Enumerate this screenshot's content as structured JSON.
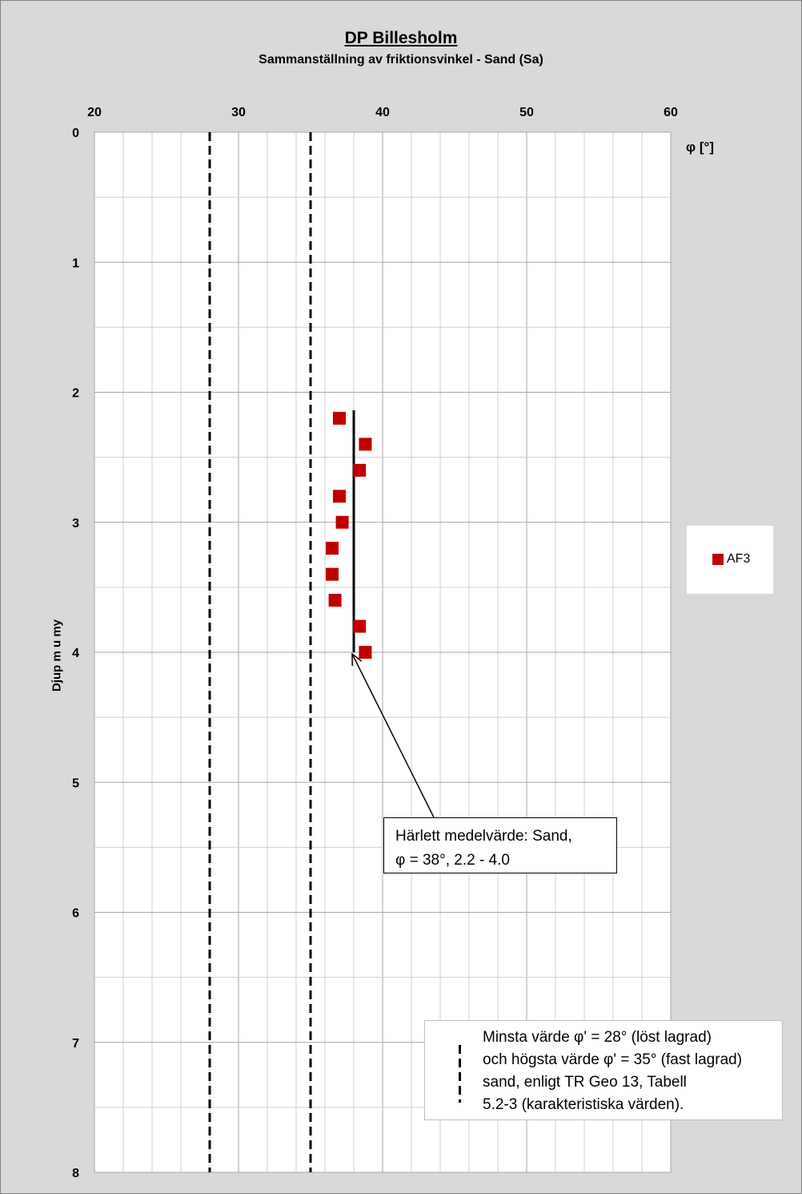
{
  "chart_data": {
    "type": "scatter",
    "title": "DP Billesholm",
    "subtitle": "Sammanställning av friktionsvinkel - Sand (Sa)",
    "xlabel": "φ [°]",
    "ylabel": "Djup m u my",
    "xlim": [
      20,
      60
    ],
    "ylim": [
      8,
      0
    ],
    "x_axis_position": "top",
    "x_ticks": [
      20,
      30,
      40,
      50,
      60
    ],
    "y_ticks": [
      0,
      1,
      2,
      3,
      4,
      5,
      6,
      7,
      8
    ],
    "grid": true,
    "legend_position": "right",
    "series": [
      {
        "name": "AF3",
        "color": "#c00000",
        "marker": "square",
        "points": [
          {
            "x": 37.0,
            "y": 2.2
          },
          {
            "x": 38.8,
            "y": 2.4
          },
          {
            "x": 38.4,
            "y": 2.6
          },
          {
            "x": 37.0,
            "y": 2.8
          },
          {
            "x": 37.2,
            "y": 3.0
          },
          {
            "x": 36.5,
            "y": 3.2
          },
          {
            "x": 36.5,
            "y": 3.4
          },
          {
            "x": 36.7,
            "y": 3.6
          },
          {
            "x": 38.4,
            "y": 3.8
          },
          {
            "x": 38.8,
            "y": 4.0
          }
        ]
      }
    ],
    "reference_lines": [
      {
        "x": 28,
        "style": "dashed",
        "y_from": 0,
        "y_to": 8
      },
      {
        "x": 35,
        "style": "dashed",
        "y_from": 0,
        "y_to": 8
      }
    ],
    "mean_line": {
      "x": 38,
      "y_from": 2.2,
      "y_to": 4.0,
      "color": "#000000"
    },
    "callout": {
      "line1": "Härlett medelvärde:  Sand,",
      "line2": "φ = 38°, 2.2 - 4.0"
    },
    "note": {
      "line1": "Minsta värde φ' = 28° (löst lagrad)",
      "line2": "och högsta värde φ' = 35° (fast lagrad)",
      "line3": "sand, enligt TR Geo 13, Tabell",
      "line4": "5.2-3 (karakteristiska värden)."
    }
  }
}
